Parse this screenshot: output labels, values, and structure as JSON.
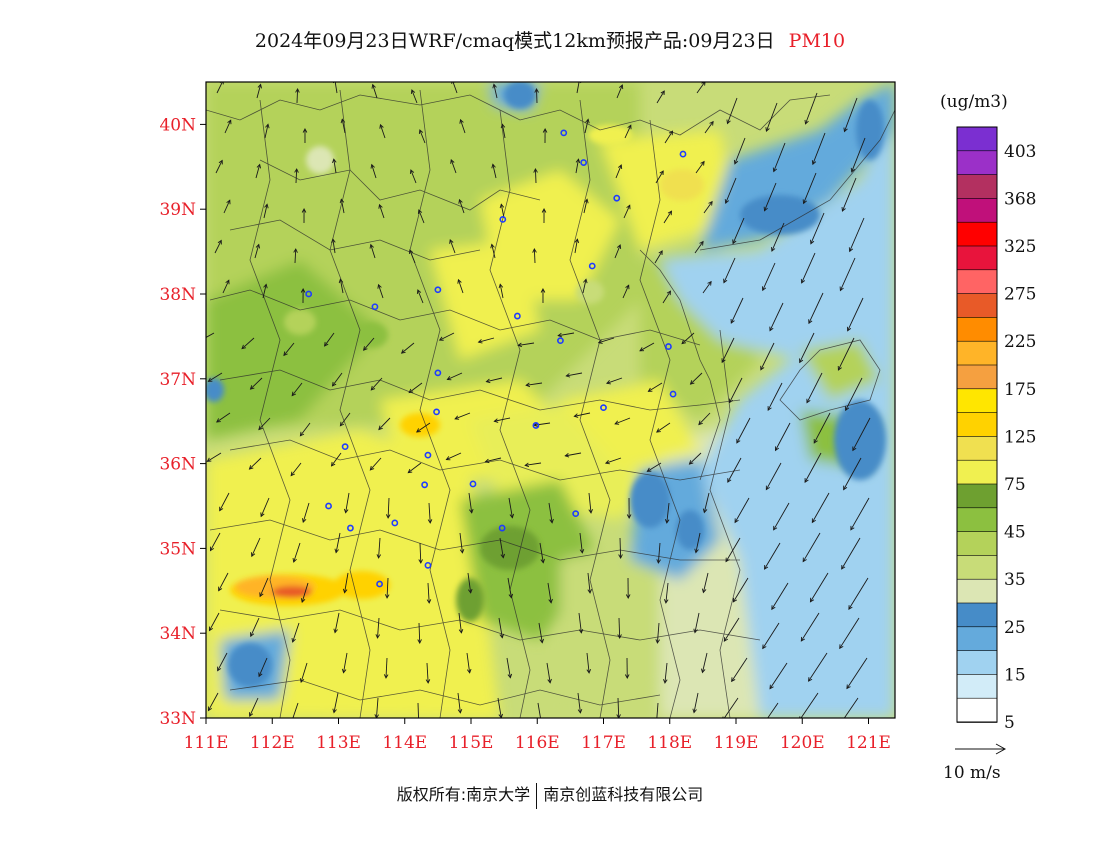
{
  "title": {
    "main": "2024年09月23日WRF/cmaq模式12km预报产品:09月23日",
    "variable": "PM10",
    "variable_color": "#e8202a"
  },
  "map": {
    "lon_labels": [
      "111E",
      "112E",
      "113E",
      "114E",
      "115E",
      "116E",
      "117E",
      "118E",
      "119E",
      "120E",
      "121E"
    ],
    "lat_labels": [
      "40N",
      "39N",
      "38N",
      "37N",
      "36N",
      "35N",
      "34N",
      "33N"
    ],
    "label_color": "#e8202a",
    "lon_range": [
      111,
      121.4
    ],
    "lat_range": [
      33,
      40.5
    ],
    "cities": [
      {
        "lon": 116.4,
        "lat": 39.9
      },
      {
        "lon": 116.7,
        "lat": 39.55
      },
      {
        "lon": 117.2,
        "lat": 39.13
      },
      {
        "lon": 118.2,
        "lat": 39.65
      },
      {
        "lon": 115.48,
        "lat": 38.88
      },
      {
        "lon": 116.83,
        "lat": 38.33
      },
      {
        "lon": 114.5,
        "lat": 38.05
      },
      {
        "lon": 112.55,
        "lat": 38.0
      },
      {
        "lon": 113.55,
        "lat": 37.85
      },
      {
        "lon": 115.7,
        "lat": 37.74
      },
      {
        "lon": 116.35,
        "lat": 37.45
      },
      {
        "lon": 117.98,
        "lat": 37.38
      },
      {
        "lon": 114.5,
        "lat": 37.07
      },
      {
        "lon": 118.05,
        "lat": 36.82
      },
      {
        "lon": 117.0,
        "lat": 36.66
      },
      {
        "lon": 114.48,
        "lat": 36.61
      },
      {
        "lon": 115.98,
        "lat": 36.45
      },
      {
        "lon": 113.1,
        "lat": 36.2
      },
      {
        "lon": 114.35,
        "lat": 36.1
      },
      {
        "lon": 114.3,
        "lat": 35.75
      },
      {
        "lon": 115.03,
        "lat": 35.76
      },
      {
        "lon": 112.85,
        "lat": 35.5
      },
      {
        "lon": 116.58,
        "lat": 35.41
      },
      {
        "lon": 113.85,
        "lat": 35.3
      },
      {
        "lon": 115.47,
        "lat": 35.24
      },
      {
        "lon": 113.18,
        "lat": 35.24
      },
      {
        "lon": 114.35,
        "lat": 34.8
      },
      {
        "lon": 113.62,
        "lat": 34.58
      }
    ]
  },
  "colorbar": {
    "units": "(ug/m3)",
    "labels": [
      "403",
      "368",
      "325",
      "275",
      "225",
      "175",
      "125",
      "75",
      "45",
      "35",
      "25",
      "15",
      "5"
    ],
    "colors": [
      "#7b2fd1",
      "#9b30c8",
      "#b33060",
      "#c0107a",
      "#ff0000",
      "#e8143c",
      "#ff6464",
      "#e85a28",
      "#ff8c00",
      "#ffb428",
      "#f5a040",
      "#ffe600",
      "#ffd200",
      "#f0e050",
      "#f0f050",
      "#6ea030",
      "#8cc040",
      "#b4d25a",
      "#c8dc78",
      "#dce6b4",
      "#468cc8",
      "#64aadc",
      "#a0d2f0",
      "#d2ecf8",
      "#ffffff"
    ]
  },
  "wind_legend": {
    "label": "10 m/s"
  },
  "footer": {
    "left": "版权所有:南京大学",
    "right": "南京创蓝科技有限公司"
  }
}
